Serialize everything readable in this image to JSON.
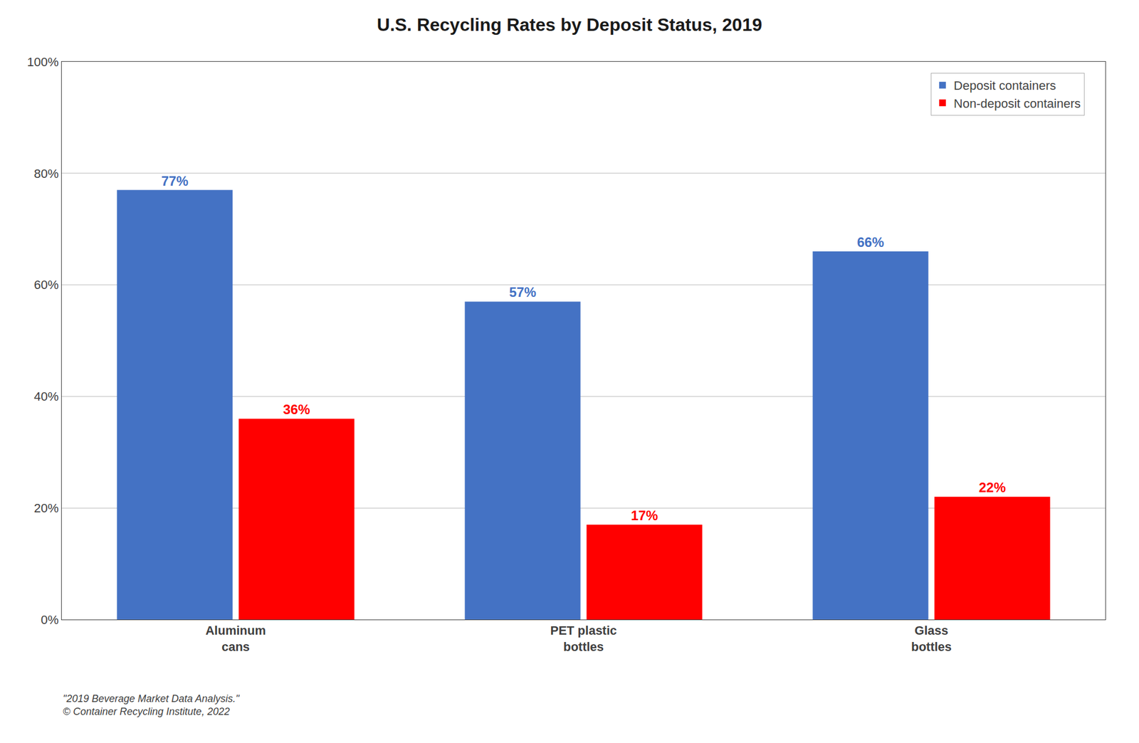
{
  "chart_data": {
    "type": "bar",
    "title": "U.S. Recycling Rates by Deposit Status, 2019",
    "categories": [
      "Aluminum\ncans",
      "PET plastic\nbottles",
      "Glass\nbottles"
    ],
    "series": [
      {
        "name": "Deposit containers",
        "color": "#4472C4",
        "values": [
          77,
          57,
          66
        ],
        "value_labels": [
          "77%",
          "57%",
          "66%"
        ]
      },
      {
        "name": "Non-deposit containers",
        "color": "#FF0000",
        "values": [
          36,
          17,
          22
        ],
        "value_labels": [
          "36%",
          "17%",
          "22%"
        ]
      }
    ],
    "ylim": [
      0,
      100
    ],
    "yticks": [
      {
        "value": 0,
        "label": "0%"
      },
      {
        "value": 20,
        "label": "20%"
      },
      {
        "value": 40,
        "label": "40%"
      },
      {
        "value": 60,
        "label": "60%"
      },
      {
        "value": 80,
        "label": "80%"
      },
      {
        "value": 100,
        "label": "100%"
      }
    ],
    "grid": true,
    "legend": "upper right",
    "data_labels": true,
    "annotations": [
      "\"2019 Beverage Market Data Analysis.\"",
      "© Container Recycling Institute, 2022"
    ]
  }
}
